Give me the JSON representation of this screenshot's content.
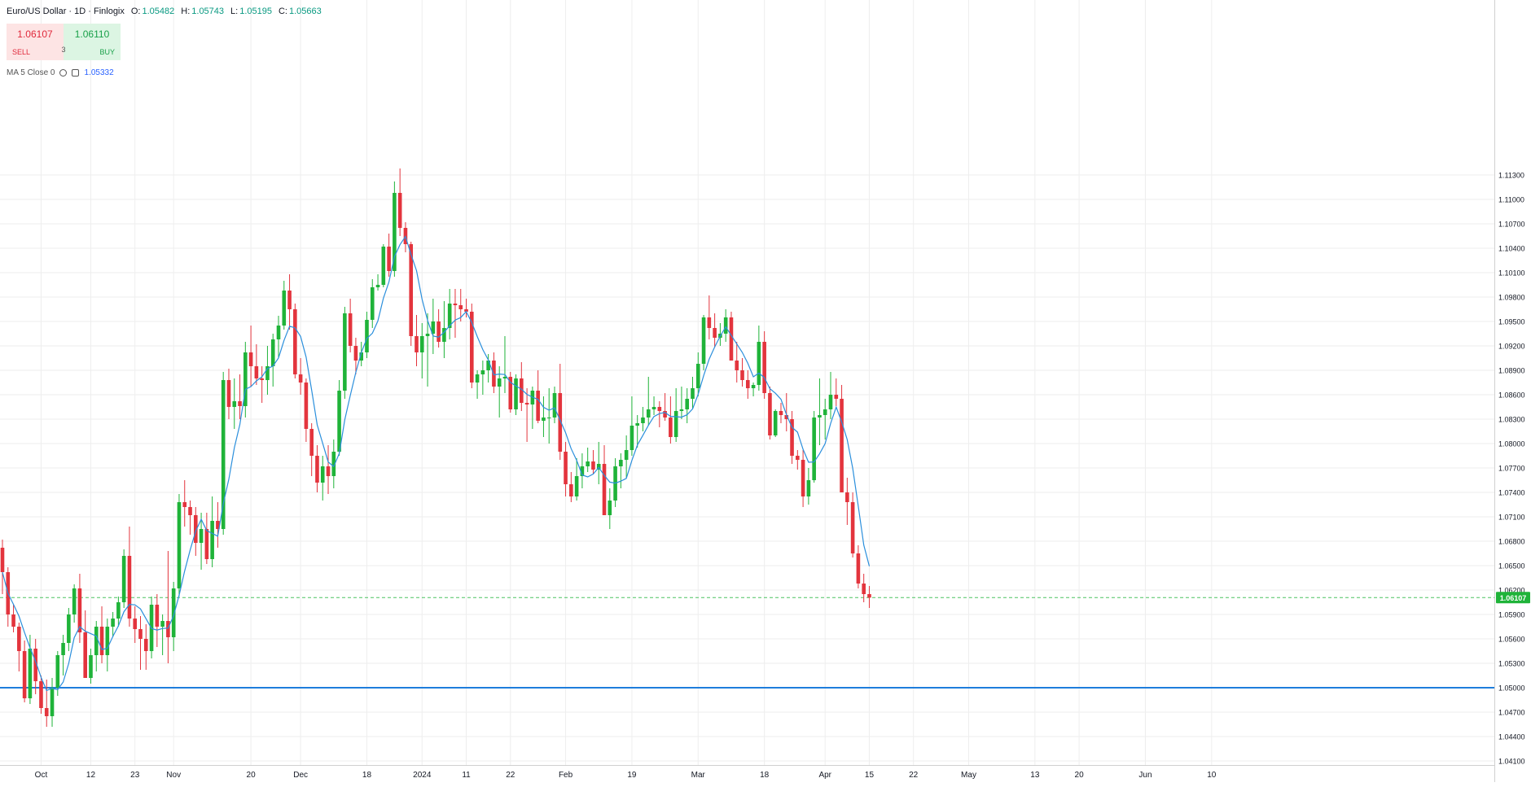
{
  "legend": {
    "title": "Euro/US Dollar · 1D · Finlogix",
    "o_label": "O:",
    "o_value": "1.05482",
    "h_label": "H:",
    "h_value": "1.05743",
    "l_label": "L:",
    "l_value": "1.05195",
    "c_label": "C:",
    "c_value": "1.05663"
  },
  "trade": {
    "sell_price": "1.06107",
    "sell_label": "SELL",
    "buy_price": "1.06110",
    "buy_label": "BUY",
    "quantity": "3"
  },
  "indicator": {
    "label": "MA 5 Close 0",
    "value": "1.05332",
    "settings_icon": "gear-icon",
    "delete_icon": "trash-icon"
  },
  "colors": {
    "up": "#1fb339",
    "down": "#e3343d",
    "ma": "#2b8fdc",
    "hline": "#1e7ddc",
    "last_price": "#1fb339"
  },
  "price_axis": {
    "labels": [
      "1.11300",
      "1.11000",
      "1.10700",
      "1.10400",
      "1.10100",
      "1.09800",
      "1.09500",
      "1.09200",
      "1.08900",
      "1.08600",
      "1.08300",
      "1.08000",
      "1.07700",
      "1.07400",
      "1.07100",
      "1.06800",
      "1.06500",
      "1.06200",
      "1.05900",
      "1.05600",
      "1.05300",
      "1.05000",
      "1.04700",
      "1.04400",
      "1.04100"
    ],
    "last_price_label": "1.06107"
  },
  "time_axis": {
    "labels": [
      "Oct",
      "12",
      "23",
      "Nov",
      "20",
      "Dec",
      "18",
      "2024",
      "11",
      "22",
      "Feb",
      "19",
      "Mar",
      "18",
      "Apr",
      "15",
      "22",
      "May",
      "13",
      "20",
      "Jun",
      "10"
    ]
  },
  "chart_data": {
    "type": "candlestick",
    "symbol": "Euro/US Dollar",
    "timeframe": "1D",
    "ylim": [
      1.0405,
      1.1345
    ],
    "horizontal_line": 1.05,
    "last_price": 1.06107,
    "ma_period": 5,
    "grid": true,
    "candles": [
      [
        1.0672,
        1.0682,
        1.0615,
        1.0642
      ],
      [
        1.0642,
        1.0648,
        1.0575,
        1.059
      ],
      [
        1.059,
        1.0602,
        1.0568,
        1.0575
      ],
      [
        1.0575,
        1.058,
        1.052,
        1.0545
      ],
      [
        1.0545,
        1.0558,
        1.0482,
        1.0487
      ],
      [
        1.0487,
        1.0565,
        1.048,
        1.0548
      ],
      [
        1.0548,
        1.056,
        1.0492,
        1.0508
      ],
      [
        1.0508,
        1.0515,
        1.0468,
        1.0475
      ],
      [
        1.0475,
        1.051,
        1.0452,
        1.0465
      ],
      [
        1.0465,
        1.0512,
        1.0452,
        1.05
      ],
      [
        1.05,
        1.0545,
        1.049,
        1.054
      ],
      [
        1.054,
        1.0565,
        1.0515,
        1.0555
      ],
      [
        1.0555,
        1.0598,
        1.0545,
        1.059
      ],
      [
        1.059,
        1.0627,
        1.058,
        1.0622
      ],
      [
        1.0622,
        1.064,
        1.0555,
        1.0568
      ],
      [
        1.0568,
        1.0595,
        1.0512,
        1.0512
      ],
      [
        1.0512,
        1.0548,
        1.0505,
        1.054
      ],
      [
        1.054,
        1.0582,
        1.052,
        1.0575
      ],
      [
        1.0575,
        1.06,
        1.053,
        1.054
      ],
      [
        1.054,
        1.0585,
        1.052,
        1.0575
      ],
      [
        1.0575,
        1.0593,
        1.0562,
        1.0585
      ],
      [
        1.0585,
        1.0612,
        1.0575,
        1.0605
      ],
      [
        1.0605,
        1.067,
        1.0598,
        1.0662
      ],
      [
        1.0662,
        1.0698,
        1.0575,
        1.0585
      ],
      [
        1.0585,
        1.06,
        1.0555,
        1.0572
      ],
      [
        1.0572,
        1.0588,
        1.0522,
        1.056
      ],
      [
        1.056,
        1.0578,
        1.0522,
        1.0545
      ],
      [
        1.0545,
        1.0612,
        1.0536,
        1.0602
      ],
      [
        1.0602,
        1.0615,
        1.055,
        1.0575
      ],
      [
        1.0575,
        1.059,
        1.054,
        1.0582
      ],
      [
        1.0582,
        1.0668,
        1.053,
        1.0562
      ],
      [
        1.0562,
        1.063,
        1.0545,
        1.0622
      ],
      [
        1.0622,
        1.0738,
        1.0612,
        1.0728
      ],
      [
        1.0728,
        1.0755,
        1.0698,
        1.0722
      ],
      [
        1.0722,
        1.073,
        1.0688,
        1.0712
      ],
      [
        1.0712,
        1.0722,
        1.0662,
        1.0678
      ],
      [
        1.0678,
        1.0715,
        1.0645,
        1.0695
      ],
      [
        1.0695,
        1.0715,
        1.0652,
        1.0658
      ],
      [
        1.0658,
        1.0735,
        1.0648,
        1.0705
      ],
      [
        1.0705,
        1.0728,
        1.0672,
        1.0695
      ],
      [
        1.0695,
        1.0888,
        1.0688,
        1.0878
      ],
      [
        1.0878,
        1.0892,
        1.083,
        1.0845
      ],
      [
        1.0845,
        1.088,
        1.0818,
        1.0852
      ],
      [
        1.0852,
        1.0885,
        1.083,
        1.0846
      ],
      [
        1.0846,
        1.0925,
        1.0832,
        1.0912
      ],
      [
        1.0912,
        1.0945,
        1.087,
        1.0895
      ],
      [
        1.0895,
        1.0922,
        1.0872,
        1.088
      ],
      [
        1.088,
        1.0895,
        1.085,
        1.0878
      ],
      [
        1.0878,
        1.092,
        1.086,
        1.0895
      ],
      [
        1.0895,
        1.0935,
        1.087,
        1.0928
      ],
      [
        1.0928,
        1.0957,
        1.0905,
        1.0945
      ],
      [
        1.0945,
        1.1,
        1.094,
        1.0988
      ],
      [
        1.0988,
        1.1008,
        1.094,
        1.0965
      ],
      [
        1.0965,
        1.0972,
        1.088,
        1.0885
      ],
      [
        1.0885,
        1.0905,
        1.086,
        1.0875
      ],
      [
        1.0875,
        1.088,
        1.0802,
        1.0818
      ],
      [
        1.0818,
        1.0825,
        1.076,
        1.0785
      ],
      [
        1.0785,
        1.0798,
        1.074,
        1.0752
      ],
      [
        1.0752,
        1.0785,
        1.073,
        1.0772
      ],
      [
        1.0772,
        1.0798,
        1.0738,
        1.076
      ],
      [
        1.076,
        1.0805,
        1.0745,
        1.079
      ],
      [
        1.079,
        1.0878,
        1.0785,
        1.0865
      ],
      [
        1.0865,
        1.0968,
        1.0855,
        1.096
      ],
      [
        1.096,
        1.0978,
        1.0912,
        1.092
      ],
      [
        1.092,
        1.093,
        1.0885,
        1.0902
      ],
      [
        1.0902,
        1.0925,
        1.0895,
        1.0912
      ],
      [
        1.0912,
        1.0962,
        1.0905,
        1.0952
      ],
      [
        1.0952,
        1.1002,
        1.0942,
        1.0992
      ],
      [
        1.0992,
        1.1008,
        1.0988,
        1.0995
      ],
      [
        1.0995,
        1.1045,
        1.0992,
        1.1042
      ],
      [
        1.1042,
        1.1058,
        1.1005,
        1.1012
      ],
      [
        1.1012,
        1.1122,
        1.1005,
        1.1108
      ],
      [
        1.1108,
        1.1138,
        1.1055,
        1.1065
      ],
      [
        1.1065,
        1.1072,
        1.1035,
        1.1045
      ],
      [
        1.1045,
        1.1048,
        1.092,
        1.0932
      ],
      [
        1.0932,
        1.0958,
        1.0895,
        1.0912
      ],
      [
        1.0912,
        1.0948,
        1.088,
        1.0932
      ],
      [
        1.0932,
        1.096,
        1.087,
        1.0935
      ],
      [
        1.0935,
        1.0978,
        1.091,
        1.095
      ],
      [
        1.095,
        1.0965,
        1.0918,
        1.0925
      ],
      [
        1.0925,
        1.0975,
        1.0905,
        1.0942
      ],
      [
        1.0942,
        1.099,
        1.0928,
        1.0972
      ],
      [
        1.0972,
        1.099,
        1.093,
        1.097
      ],
      [
        1.097,
        1.099,
        1.095,
        1.0965
      ],
      [
        1.0965,
        1.0978,
        1.0955,
        1.0962
      ],
      [
        1.0962,
        1.0972,
        1.0868,
        1.0875
      ],
      [
        1.0875,
        1.089,
        1.0855,
        1.0885
      ],
      [
        1.0885,
        1.0902,
        1.086,
        1.089
      ],
      [
        1.089,
        1.091,
        1.0875,
        1.0902
      ],
      [
        1.0902,
        1.0912,
        1.0862,
        1.087
      ],
      [
        1.087,
        1.0895,
        1.0832,
        1.088
      ],
      [
        1.088,
        1.0932,
        1.0862,
        1.0882
      ],
      [
        1.0882,
        1.0888,
        1.0838,
        1.0842
      ],
      [
        1.0842,
        1.0885,
        1.0835,
        1.088
      ],
      [
        1.088,
        1.09,
        1.084,
        1.085
      ],
      [
        1.085,
        1.0868,
        1.0802,
        1.0848
      ],
      [
        1.0848,
        1.087,
        1.0818,
        1.0865
      ],
      [
        1.0865,
        1.089,
        1.0825,
        1.0828
      ],
      [
        1.0828,
        1.0858,
        1.0808,
        1.0832
      ],
      [
        1.0832,
        1.0868,
        1.08,
        1.0832
      ],
      [
        1.0832,
        1.087,
        1.0825,
        1.0862
      ],
      [
        1.0862,
        1.0898,
        1.078,
        1.079
      ],
      [
        1.079,
        1.0802,
        1.0735,
        1.075
      ],
      [
        1.075,
        1.0765,
        1.0728,
        1.0735
      ],
      [
        1.0735,
        1.0782,
        1.073,
        1.076
      ],
      [
        1.076,
        1.0788,
        1.0745,
        1.0772
      ],
      [
        1.0772,
        1.0795,
        1.0765,
        1.0778
      ],
      [
        1.0778,
        1.0792,
        1.0762,
        1.0768
      ],
      [
        1.0768,
        1.0802,
        1.075,
        1.0775
      ],
      [
        1.0775,
        1.0798,
        1.0712,
        1.0712
      ],
      [
        1.0712,
        1.0745,
        1.0695,
        1.073
      ],
      [
        1.073,
        1.0782,
        1.0722,
        1.0772
      ],
      [
        1.0772,
        1.0788,
        1.0745,
        1.078
      ],
      [
        1.078,
        1.081,
        1.0758,
        1.0792
      ],
      [
        1.0792,
        1.0858,
        1.0785,
        1.0822
      ],
      [
        1.0822,
        1.0835,
        1.0795,
        1.0825
      ],
      [
        1.0825,
        1.0845,
        1.0815,
        1.0832
      ],
      [
        1.0832,
        1.0882,
        1.0822,
        1.0842
      ],
      [
        1.0842,
        1.0858,
        1.0835,
        1.0845
      ],
      [
        1.0845,
        1.0852,
        1.082,
        1.084
      ],
      [
        1.084,
        1.0862,
        1.0828,
        1.0832
      ],
      [
        1.0832,
        1.0858,
        1.08,
        1.0808
      ],
      [
        1.0808,
        1.0868,
        1.0802,
        1.084
      ],
      [
        1.084,
        1.087,
        1.083,
        1.0842
      ],
      [
        1.0842,
        1.0868,
        1.0825,
        1.0855
      ],
      [
        1.0855,
        1.0882,
        1.0842,
        1.0868
      ],
      [
        1.0868,
        1.0912,
        1.0858,
        1.0898
      ],
      [
        1.0898,
        1.0958,
        1.089,
        1.0955
      ],
      [
        1.0955,
        1.0982,
        1.0928,
        1.0942
      ],
      [
        1.0942,
        1.096,
        1.0918,
        1.093
      ],
      [
        1.093,
        1.0948,
        1.092,
        1.0935
      ],
      [
        1.0935,
        1.0965,
        1.0925,
        1.0955
      ],
      [
        1.0955,
        1.0962,
        1.0902,
        1.0902
      ],
      [
        1.0902,
        1.0925,
        1.0875,
        1.089
      ],
      [
        1.089,
        1.0905,
        1.087,
        1.0878
      ],
      [
        1.0878,
        1.089,
        1.0855,
        1.0868
      ],
      [
        1.0868,
        1.0875,
        1.0858,
        1.0872
      ],
      [
        1.0872,
        1.0945,
        1.0865,
        1.0925
      ],
      [
        1.0925,
        1.0938,
        1.0855,
        1.0862
      ],
      [
        1.0862,
        1.087,
        1.0805,
        1.081
      ],
      [
        1.081,
        1.0842,
        1.0808,
        1.084
      ],
      [
        1.084,
        1.085,
        1.0825,
        1.0835
      ],
      [
        1.0835,
        1.0862,
        1.0815,
        1.083
      ],
      [
        1.083,
        1.084,
        1.0775,
        1.0785
      ],
      [
        1.0785,
        1.0792,
        1.0768,
        1.078
      ],
      [
        1.078,
        1.0792,
        1.0722,
        1.0735
      ],
      [
        1.0735,
        1.077,
        1.0725,
        1.0755
      ],
      [
        1.0755,
        1.084,
        1.0752,
        1.0832
      ],
      [
        1.0832,
        1.088,
        1.0798,
        1.0835
      ],
      [
        1.0835,
        1.0855,
        1.0805,
        1.0842
      ],
      [
        1.0842,
        1.0888,
        1.083,
        1.086
      ],
      [
        1.086,
        1.088,
        1.0846,
        1.0855
      ],
      [
        1.0855,
        1.0872,
        1.074,
        1.074
      ],
      [
        1.074,
        1.0758,
        1.07,
        1.0728
      ],
      [
        1.0728,
        1.074,
        1.066,
        1.0665
      ],
      [
        1.0665,
        1.0675,
        1.0622,
        1.0628
      ],
      [
        1.0628,
        1.064,
        1.0605,
        1.0615
      ],
      [
        1.0615,
        1.0625,
        1.0598,
        1.06107
      ]
    ]
  }
}
